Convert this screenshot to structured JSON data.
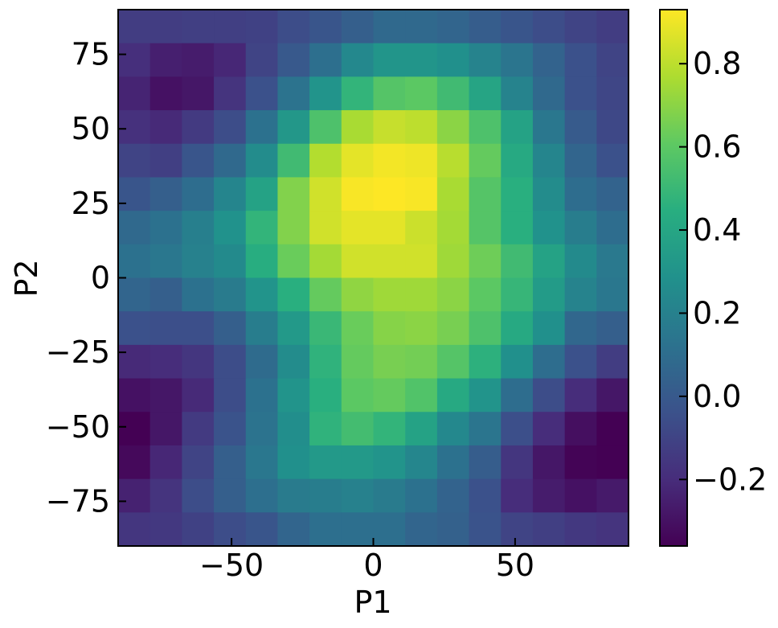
{
  "chart_data": {
    "type": "heatmap",
    "xlabel": "P1",
    "ylabel": "P2",
    "xlim": [
      -90,
      90
    ],
    "ylim": [
      -90,
      90
    ],
    "x_ticks": [
      -50,
      0,
      50
    ],
    "x_tick_labels": [
      "−50",
      "0",
      "50"
    ],
    "y_ticks": [
      -75,
      -50,
      -25,
      0,
      25,
      50,
      75
    ],
    "y_tick_labels": [
      "−75",
      "−50",
      "−25",
      "0",
      "25",
      "50",
      "75"
    ],
    "colorbar": {
      "colormap": "viridis",
      "range": [
        -0.36,
        0.93
      ],
      "ticks": [
        -0.2,
        0.0,
        0.2,
        0.4,
        0.6,
        0.8
      ],
      "tick_labels": [
        "−0.2",
        "0.0",
        "0.2",
        "0.4",
        "0.6",
        "0.8"
      ]
    },
    "grid": "off",
    "x_centers": [
      -85,
      -74,
      -62,
      -51,
      -39,
      -28,
      -17,
      -6,
      6,
      17,
      28,
      39,
      51,
      62,
      74,
      85
    ],
    "y_centers": [
      85,
      74,
      62,
      51,
      39,
      28,
      17,
      6,
      -6,
      -17,
      -28,
      -39,
      -51,
      -62,
      -74,
      -85
    ],
    "values": [
      [
        -0.13,
        -0.13,
        -0.12,
        -0.12,
        -0.11,
        -0.06,
        -0.02,
        0.03,
        0.08,
        0.08,
        0.06,
        0.02,
        -0.02,
        -0.06,
        -0.1,
        -0.13
      ],
      [
        -0.19,
        -0.25,
        -0.26,
        -0.22,
        -0.1,
        0.0,
        0.11,
        0.24,
        0.31,
        0.31,
        0.28,
        0.21,
        0.14,
        0.05,
        -0.04,
        -0.1
      ],
      [
        -0.23,
        -0.3,
        -0.28,
        -0.17,
        -0.04,
        0.13,
        0.3,
        0.48,
        0.58,
        0.6,
        0.52,
        0.39,
        0.21,
        0.08,
        -0.04,
        -0.09
      ],
      [
        -0.18,
        -0.21,
        -0.14,
        -0.06,
        0.12,
        0.32,
        0.56,
        0.76,
        0.82,
        0.8,
        0.7,
        0.56,
        0.38,
        0.15,
        0.01,
        -0.08
      ],
      [
        -0.1,
        -0.12,
        -0.02,
        0.08,
        0.26,
        0.52,
        0.78,
        0.88,
        0.91,
        0.9,
        0.79,
        0.62,
        0.42,
        0.22,
        0.06,
        -0.04
      ],
      [
        -0.02,
        0.03,
        0.1,
        0.22,
        0.38,
        0.68,
        0.84,
        0.92,
        0.93,
        0.92,
        0.76,
        0.58,
        0.45,
        0.26,
        0.1,
        0.05
      ],
      [
        0.08,
        0.12,
        0.19,
        0.29,
        0.48,
        0.68,
        0.84,
        0.88,
        0.88,
        0.83,
        0.75,
        0.58,
        0.45,
        0.29,
        0.18,
        0.1
      ],
      [
        0.12,
        0.15,
        0.2,
        0.25,
        0.44,
        0.63,
        0.75,
        0.84,
        0.84,
        0.84,
        0.74,
        0.64,
        0.52,
        0.38,
        0.25,
        0.16
      ],
      [
        0.06,
        0.03,
        0.12,
        0.17,
        0.3,
        0.45,
        0.62,
        0.71,
        0.74,
        0.74,
        0.7,
        0.6,
        0.49,
        0.34,
        0.21,
        0.15
      ],
      [
        -0.04,
        -0.05,
        -0.05,
        0.03,
        0.18,
        0.33,
        0.5,
        0.63,
        0.69,
        0.7,
        0.66,
        0.56,
        0.42,
        0.28,
        0.07,
        0.03
      ],
      [
        -0.21,
        -0.2,
        -0.16,
        -0.06,
        0.09,
        0.26,
        0.47,
        0.62,
        0.66,
        0.65,
        0.58,
        0.46,
        0.28,
        0.1,
        -0.04,
        -0.13
      ],
      [
        -0.3,
        -0.28,
        -0.21,
        -0.06,
        0.12,
        0.3,
        0.45,
        0.6,
        0.62,
        0.57,
        0.42,
        0.3,
        0.1,
        -0.06,
        -0.2,
        -0.28
      ],
      [
        -0.36,
        -0.28,
        -0.14,
        -0.03,
        0.13,
        0.27,
        0.47,
        0.53,
        0.48,
        0.38,
        0.24,
        0.14,
        -0.05,
        -0.2,
        -0.31,
        -0.36
      ],
      [
        -0.33,
        -0.22,
        -0.1,
        0.03,
        0.15,
        0.28,
        0.33,
        0.33,
        0.3,
        0.23,
        0.12,
        0.02,
        -0.16,
        -0.28,
        -0.35,
        -0.36
      ],
      [
        -0.24,
        -0.17,
        -0.06,
        0.03,
        0.11,
        0.17,
        0.18,
        0.2,
        0.17,
        0.12,
        0.05,
        -0.04,
        -0.2,
        -0.26,
        -0.3,
        -0.27
      ],
      [
        -0.16,
        -0.15,
        -0.11,
        -0.06,
        -0.02,
        0.06,
        0.11,
        0.11,
        0.11,
        0.06,
        0.04,
        -0.03,
        -0.1,
        -0.12,
        -0.15,
        -0.17
      ]
    ]
  }
}
